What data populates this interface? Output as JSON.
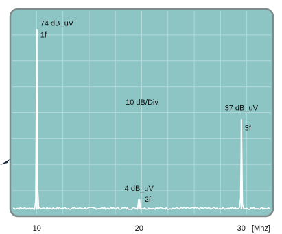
{
  "chart_data": {
    "type": "line",
    "grid": true,
    "grid_divisions": {
      "x": 10,
      "y": 8
    },
    "colors": {
      "screen_background": "#8dc4c4",
      "screen_border": "#7f8a8a",
      "grid": "#b3d9d9",
      "trace": "#ffffff",
      "pointer": "#1a2a40",
      "text": "#111111"
    },
    "scale_label": "10 dB/Div",
    "x": {
      "range": [
        7.4,
        33.1
      ],
      "ticks": [
        {
          "value": 10,
          "label": "10"
        },
        {
          "value": 20,
          "label": "20"
        },
        {
          "value": 30,
          "label": "30"
        }
      ],
      "unit": "[Mhz]"
    },
    "y": {
      "unit": "dB_uV",
      "range": [
        0,
        80
      ]
    },
    "series": [
      {
        "points": [
          {
            "x": 10,
            "y": 74
          },
          {
            "x": 20,
            "y": 4
          },
          {
            "x": 30,
            "y": 37
          }
        ]
      }
    ],
    "annotations": [
      {
        "x": 10,
        "value_label": "74 dB_uV",
        "harmonic_label": "1f"
      },
      {
        "x": 20,
        "value_label": "4 dB_uV",
        "harmonic_label": "2f"
      },
      {
        "x": 30,
        "value_label": "37 dB_uV",
        "harmonic_label": "3f"
      }
    ]
  }
}
